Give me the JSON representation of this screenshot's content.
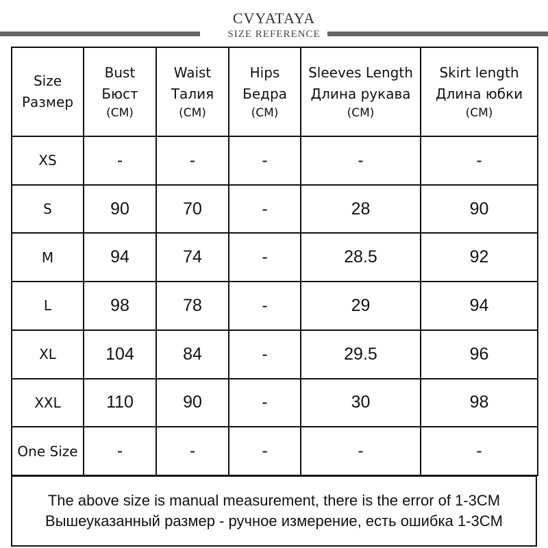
{
  "header": {
    "brand": "CVYATAYA",
    "subtitle": "SIZE REFERENCE"
  },
  "table": {
    "columns": [
      {
        "en": "Size",
        "ru": "Размер",
        "unit": ""
      },
      {
        "en": "Bust",
        "ru": "Бюст",
        "unit": "(CM)"
      },
      {
        "en": "Waist",
        "ru": "Талия",
        "unit": "(CM)"
      },
      {
        "en": "Hips",
        "ru": "Бедра",
        "unit": "(CM)"
      },
      {
        "en": "Sleeves Length",
        "ru": "Длина рукава",
        "unit": "(CM)"
      },
      {
        "en": "Skirt length",
        "ru": "Длина юбки",
        "unit": "(CM)"
      }
    ],
    "rows": [
      {
        "size": "XS",
        "bust": "-",
        "waist": "-",
        "hips": "-",
        "sleeves": "-",
        "skirt": "-"
      },
      {
        "size": "S",
        "bust": "90",
        "waist": "70",
        "hips": "-",
        "sleeves": "28",
        "skirt": "90"
      },
      {
        "size": "M",
        "bust": "94",
        "waist": "74",
        "hips": "-",
        "sleeves": "28.5",
        "skirt": "92"
      },
      {
        "size": "L",
        "bust": "98",
        "waist": "78",
        "hips": "-",
        "sleeves": "29",
        "skirt": "94"
      },
      {
        "size": "XL",
        "bust": "104",
        "waist": "84",
        "hips": "-",
        "sleeves": "29.5",
        "skirt": "96"
      },
      {
        "size": "XXL",
        "bust": "110",
        "waist": "90",
        "hips": "-",
        "sleeves": "30",
        "skirt": "98"
      },
      {
        "size": "One Size",
        "bust": "-",
        "waist": "-",
        "hips": "-",
        "sleeves": "-",
        "skirt": "-"
      }
    ]
  },
  "footer": {
    "note_en": "The above size is manual measurement, there is the error of 1-3CM",
    "note_ru": "Вышеуказанный размер - ручное измерение, есть ошибка 1-3CM"
  }
}
